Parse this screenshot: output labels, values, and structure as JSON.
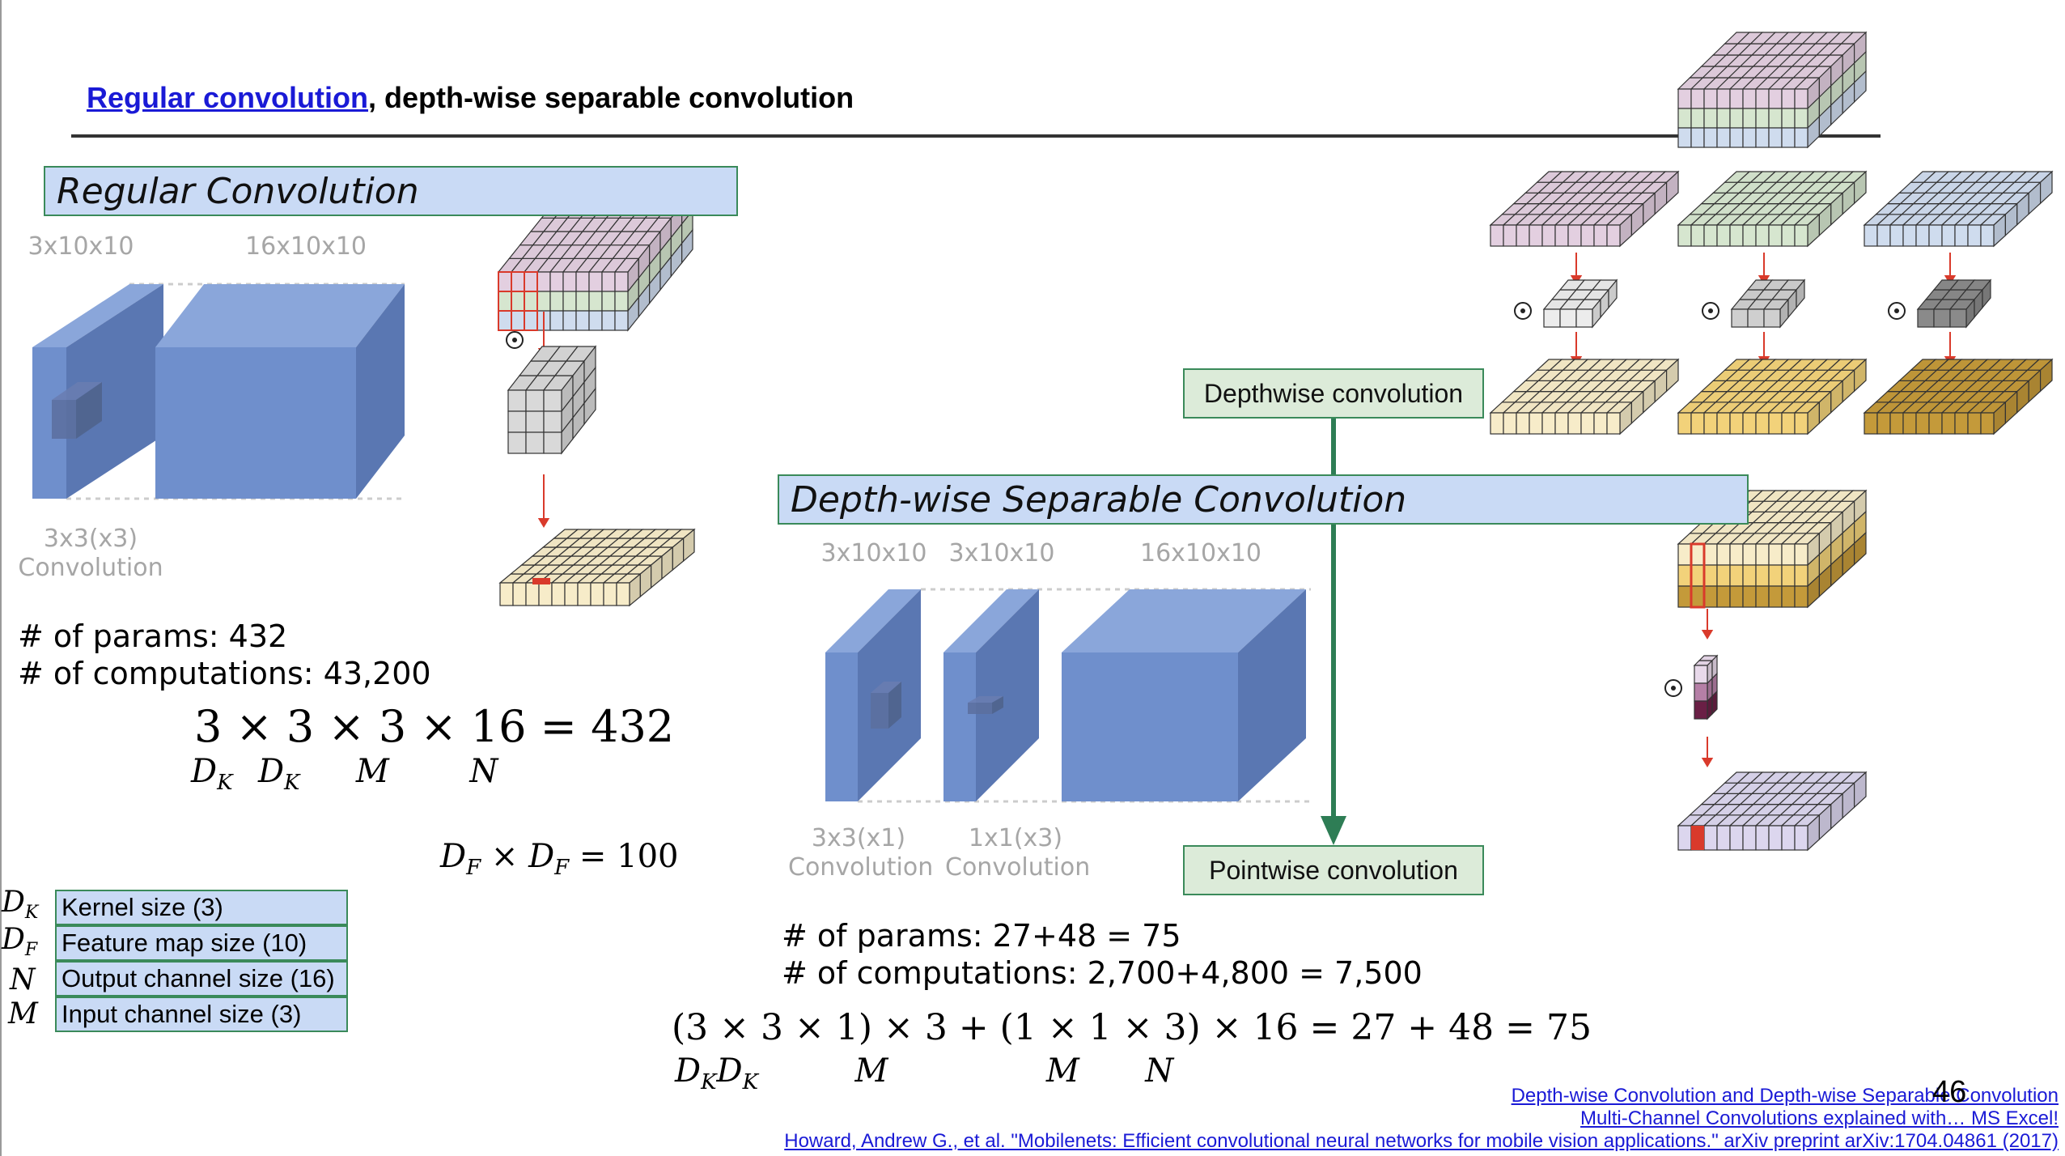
{
  "slide": {
    "title_link": "Regular convolution",
    "title_rest": ", depth-wise separable convolution",
    "page_number": "46"
  },
  "regular": {
    "banner": "Regular Convolution",
    "input_label": "3x10x10",
    "output_label": "16x10x10",
    "kernel_label_line1": "3x3(x3)",
    "kernel_label_line2": "Convolution",
    "params": "# of params: 432",
    "computations": "# of computations: 43,200",
    "formula": "3 × 3 × 3 × 16 = 432",
    "formula_sub_dk1": "D",
    "formula_sub_dk2": "D",
    "formula_sub_m": "M",
    "formula_sub_n": "N",
    "df_formula": "D",
    "df_formula_rest": " = 100"
  },
  "legend": [
    {
      "symbol": "D",
      "sub": "K",
      "text": "Kernel size (3)"
    },
    {
      "symbol": "D",
      "sub": "F",
      "text": "Feature map size (10)"
    },
    {
      "symbol": "N",
      "sub": "",
      "text": "Output channel size (16)"
    },
    {
      "symbol": "M",
      "sub": "",
      "text": "Input channel size (3)"
    }
  ],
  "separable": {
    "banner": "Depth-wise Separable Convolution",
    "input_label": "3x10x10",
    "mid_label": "3x10x10",
    "output_label": "16x10x10",
    "dw_label_line1": "3x3(x1)",
    "dw_label_line2": "Convolution",
    "pw_label_line1": "1x1(x3)",
    "pw_label_line2": "Convolution",
    "params": "# of params: 27+48 = 75",
    "computations": "# of computations: 2,700+4,800 = 7,500",
    "formula": "(3 × 3 × 1) × 3 + (1 × 1 × 3) × 16 = 27 + 48 = 75",
    "formula_sub_m1": "M",
    "formula_sub_m2": "M",
    "formula_sub_n": "N"
  },
  "boxes": {
    "depthwise": "Depthwise convolution",
    "pointwise": "Pointwise convolution"
  },
  "references": [
    "Depth-wise Convolution and Depth-wise Separable Convolution",
    "Multi-Channel Convolutions explained with… MS Excel!",
    "Howard, Andrew G., et al. \"Mobilenets: Efficient convolutional neural networks for mobile vision applications.\" arXiv preprint arXiv:1704.04861 (2017)"
  ],
  "colors": {
    "cube_front": "#6f8fcc",
    "cube_top": "#8aa6da",
    "cube_side": "#5a77b2",
    "banner_bg": "#c9daf5",
    "box_border": "#3a8a5a",
    "arrow_red": "#d93a2b",
    "link_blue": "#1a1ad6",
    "pink": "#e3cfe0",
    "green": "#d6e6cf",
    "blue": "#cfdcee",
    "cream": "#f7ecc9",
    "gold": "#f2d27a",
    "dark_gold": "#c49a3a",
    "lavender": "#dcd6ee"
  },
  "symbols": {
    "dot_operator": "⊙"
  }
}
